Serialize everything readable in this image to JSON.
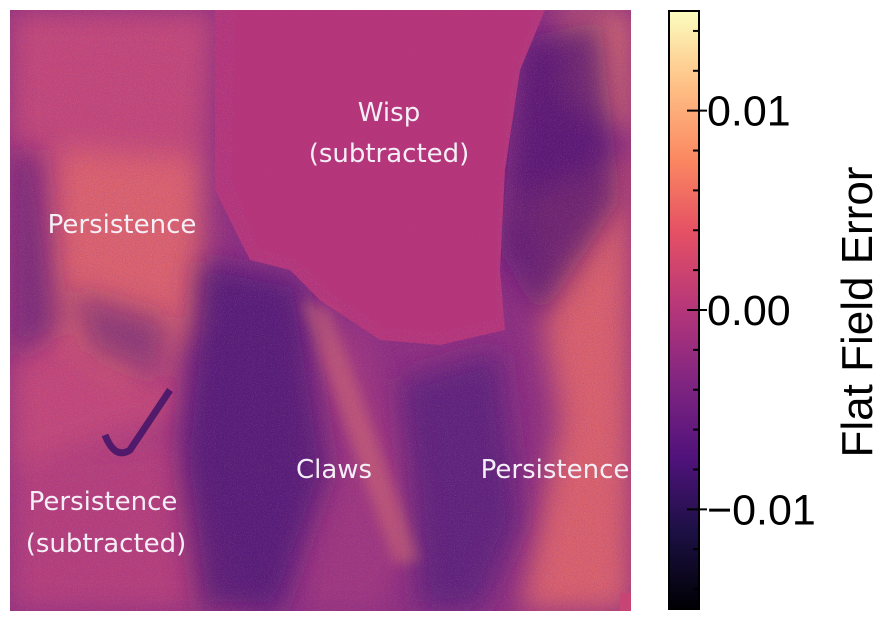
{
  "figure": {
    "annotations": [
      {
        "id": "wisp",
        "lines": [
          "Wisp",
          "(subtracted)"
        ]
      },
      {
        "id": "persistence-left",
        "lines": [
          "Persistence"
        ]
      },
      {
        "id": "claws",
        "lines": [
          "Claws"
        ]
      },
      {
        "id": "persistence-right",
        "lines": [
          "Persistence"
        ]
      },
      {
        "id": "persistence-bottom-left",
        "lines": [
          "Persistence",
          "(subtracted)"
        ]
      }
    ]
  },
  "colorbar": {
    "label": "Flat Field Error",
    "colormap": "magma",
    "range": [
      -0.015,
      0.015
    ],
    "major_ticks": [
      {
        "value": 0.01,
        "label": "0.01"
      },
      {
        "value": 0.0,
        "label": "0.00"
      },
      {
        "value": -0.01,
        "label": "−0.01"
      }
    ],
    "minor_step": 0.002
  },
  "colors": {
    "background_magenta": "#b5357a",
    "dark_purple": "#51127c",
    "orange": "#fb8861",
    "yellow": "#fcfdbf",
    "black": "#000004"
  }
}
